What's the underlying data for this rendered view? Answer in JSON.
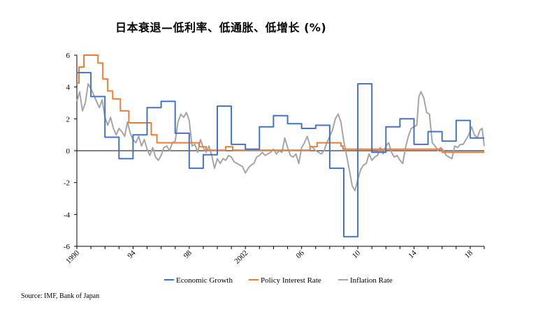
{
  "chart_data": {
    "type": "line",
    "title": "日本衰退—低利率、低通胀、低增长 (%)",
    "source": "Source: IMF, Bank of Japan",
    "ylim": [
      -6,
      6
    ],
    "yticks": [
      "6",
      "4",
      "2",
      "0",
      "-2",
      "-4",
      "-6"
    ],
    "xlim": [
      1990,
      2019
    ],
    "xtick_labels": [
      {
        "label": "1990",
        "x": 1990
      },
      {
        "label": "94",
        "x": 1994
      },
      {
        "label": "98",
        "x": 1998
      },
      {
        "label": "2002",
        "x": 2002
      },
      {
        "label": "06",
        "x": 2006
      },
      {
        "label": "10",
        "x": 2010
      },
      {
        "label": "14",
        "x": 2014
      },
      {
        "label": "18",
        "x": 2018
      }
    ],
    "zero_line": true,
    "grid": false,
    "legend_position": "bottom",
    "series": [
      {
        "name": "Economic Growth",
        "color": "#4472C4",
        "points": [
          [
            1990.0,
            4.9
          ],
          [
            1991.0,
            4.9
          ],
          [
            1991.0,
            3.4
          ],
          [
            1992.0,
            3.4
          ],
          [
            1992.0,
            0.85
          ],
          [
            1993.0,
            0.85
          ],
          [
            1993.0,
            -0.5
          ],
          [
            1994.0,
            -0.5
          ],
          [
            1994.0,
            1.0
          ],
          [
            1995.0,
            1.0
          ],
          [
            1995.0,
            2.7
          ],
          [
            1996.0,
            2.7
          ],
          [
            1996.0,
            3.1
          ],
          [
            1997.0,
            3.1
          ],
          [
            1997.0,
            1.1
          ],
          [
            1998.0,
            1.1
          ],
          [
            1998.0,
            -1.1
          ],
          [
            1999.0,
            -1.1
          ],
          [
            1999.0,
            -0.25
          ],
          [
            2000.0,
            -0.25
          ],
          [
            2000.0,
            2.8
          ],
          [
            2001.0,
            2.8
          ],
          [
            2001.0,
            0.4
          ],
          [
            2002.0,
            0.4
          ],
          [
            2002.0,
            0.1
          ],
          [
            2003.0,
            0.1
          ],
          [
            2003.0,
            1.5
          ],
          [
            2004.0,
            1.5
          ],
          [
            2004.0,
            2.2
          ],
          [
            2005.0,
            2.2
          ],
          [
            2005.0,
            1.7
          ],
          [
            2006.0,
            1.7
          ],
          [
            2006.0,
            1.4
          ],
          [
            2007.0,
            1.4
          ],
          [
            2007.0,
            1.6
          ],
          [
            2008.0,
            1.6
          ],
          [
            2008.0,
            -1.1
          ],
          [
            2009.0,
            -1.1
          ],
          [
            2009.0,
            -5.4
          ],
          [
            2010.0,
            -5.4
          ],
          [
            2010.0,
            4.2
          ],
          [
            2011.0,
            4.2
          ],
          [
            2011.0,
            -0.1
          ],
          [
            2012.0,
            -0.1
          ],
          [
            2012.0,
            1.5
          ],
          [
            2013.0,
            1.5
          ],
          [
            2013.0,
            2.0
          ],
          [
            2014.0,
            2.0
          ],
          [
            2014.0,
            0.4
          ],
          [
            2015.0,
            0.4
          ],
          [
            2015.0,
            1.2
          ],
          [
            2016.0,
            1.2
          ],
          [
            2016.0,
            0.6
          ],
          [
            2017.0,
            0.6
          ],
          [
            2017.0,
            1.9
          ],
          [
            2018.0,
            1.9
          ],
          [
            2018.0,
            0.8
          ],
          [
            2019.0,
            0.8
          ]
        ]
      },
      {
        "name": "Policy Interest Rate",
        "color": "#ED7D31",
        "points": [
          [
            1990.0,
            4.25
          ],
          [
            1990.15,
            4.25
          ],
          [
            1990.15,
            5.25
          ],
          [
            1990.5,
            5.25
          ],
          [
            1990.5,
            6.0
          ],
          [
            1991.5,
            6.0
          ],
          [
            1991.5,
            5.5
          ],
          [
            1991.85,
            5.5
          ],
          [
            1991.85,
            4.5
          ],
          [
            1992.2,
            4.5
          ],
          [
            1992.2,
            3.75
          ],
          [
            1992.55,
            3.75
          ],
          [
            1992.55,
            3.25
          ],
          [
            1993.1,
            3.25
          ],
          [
            1993.1,
            2.5
          ],
          [
            1993.7,
            2.5
          ],
          [
            1993.7,
            1.75
          ],
          [
            1995.3,
            1.75
          ],
          [
            1995.3,
            1.0
          ],
          [
            1995.7,
            1.0
          ],
          [
            1995.7,
            0.5
          ],
          [
            1998.7,
            0.5
          ],
          [
            1998.7,
            0.25
          ],
          [
            1999.2,
            0.25
          ],
          [
            1999.2,
            0.03
          ],
          [
            2000.6,
            0.03
          ],
          [
            2000.6,
            0.25
          ],
          [
            2001.1,
            0.25
          ],
          [
            2001.1,
            0.03
          ],
          [
            2006.6,
            0.03
          ],
          [
            2006.6,
            0.25
          ],
          [
            2007.1,
            0.25
          ],
          [
            2007.1,
            0.5
          ],
          [
            2008.8,
            0.5
          ],
          [
            2008.8,
            0.3
          ],
          [
            2008.95,
            0.3
          ],
          [
            2008.95,
            0.1
          ],
          [
            2016.0,
            0.1
          ],
          [
            2016.0,
            -0.1
          ],
          [
            2019.0,
            -0.1
          ]
        ]
      },
      {
        "name": "Inflation Rate",
        "color": "#A5A5A5",
        "points": [
          [
            1990.0,
            3.1
          ],
          [
            1990.2,
            3.7
          ],
          [
            1990.4,
            2.5
          ],
          [
            1990.6,
            3.0
          ],
          [
            1990.8,
            4.2
          ],
          [
            1991.0,
            3.9
          ],
          [
            1991.2,
            3.5
          ],
          [
            1991.4,
            3.1
          ],
          [
            1991.6,
            2.7
          ],
          [
            1991.8,
            3.2
          ],
          [
            1992.0,
            2.1
          ],
          [
            1992.2,
            1.6
          ],
          [
            1992.4,
            2.1
          ],
          [
            1992.6,
            1.4
          ],
          [
            1992.8,
            1.0
          ],
          [
            1993.0,
            1.4
          ],
          [
            1993.2,
            1.2
          ],
          [
            1993.4,
            0.9
          ],
          [
            1993.6,
            1.8
          ],
          [
            1993.8,
            1.1
          ],
          [
            1994.0,
            0.7
          ],
          [
            1994.2,
            0.5
          ],
          [
            1994.4,
            0.9
          ],
          [
            1994.6,
            0.3
          ],
          [
            1994.8,
            0.7
          ],
          [
            1995.0,
            0.1
          ],
          [
            1995.2,
            -0.3
          ],
          [
            1995.4,
            0.2
          ],
          [
            1995.6,
            -0.4
          ],
          [
            1995.8,
            -0.6
          ],
          [
            1996.0,
            -0.3
          ],
          [
            1996.2,
            0.2
          ],
          [
            1996.4,
            0.3
          ],
          [
            1996.6,
            0.0
          ],
          [
            1996.8,
            0.5
          ],
          [
            1997.0,
            0.6
          ],
          [
            1997.2,
            1.8
          ],
          [
            1997.4,
            2.3
          ],
          [
            1997.6,
            2.1
          ],
          [
            1997.8,
            2.4
          ],
          [
            1998.0,
            1.9
          ],
          [
            1998.2,
            0.3
          ],
          [
            1998.4,
            0.4
          ],
          [
            1998.6,
            -0.1
          ],
          [
            1998.8,
            0.7
          ],
          [
            1999.0,
            0.2
          ],
          [
            1999.2,
            -0.1
          ],
          [
            1999.4,
            0.3
          ],
          [
            1999.6,
            -0.3
          ],
          [
            1999.8,
            -1.1
          ],
          [
            2000.0,
            -0.5
          ],
          [
            2000.2,
            -0.8
          ],
          [
            2000.4,
            -0.5
          ],
          [
            2000.6,
            -0.6
          ],
          [
            2000.8,
            -0.3
          ],
          [
            2001.0,
            -0.4
          ],
          [
            2001.2,
            -0.7
          ],
          [
            2001.4,
            -0.8
          ],
          [
            2001.6,
            -0.9
          ],
          [
            2001.8,
            -1.0
          ],
          [
            2002.0,
            -1.4
          ],
          [
            2002.2,
            -1.1
          ],
          [
            2002.4,
            -0.9
          ],
          [
            2002.6,
            -0.8
          ],
          [
            2002.8,
            -0.4
          ],
          [
            2003.0,
            -0.3
          ],
          [
            2003.2,
            -0.1
          ],
          [
            2003.4,
            -0.3
          ],
          [
            2003.6,
            -0.2
          ],
          [
            2003.8,
            -0.1
          ],
          [
            2004.0,
            0.1
          ],
          [
            2004.2,
            -0.2
          ],
          [
            2004.4,
            0.0
          ],
          [
            2004.6,
            -0.1
          ],
          [
            2004.8,
            0.8
          ],
          [
            2005.0,
            0.2
          ],
          [
            2005.2,
            -0.3
          ],
          [
            2005.4,
            -0.4
          ],
          [
            2005.6,
            -0.2
          ],
          [
            2005.8,
            -0.8
          ],
          [
            2006.0,
            0.2
          ],
          [
            2006.2,
            0.5
          ],
          [
            2006.4,
            0.9
          ],
          [
            2006.6,
            0.3
          ],
          [
            2006.8,
            0.2
          ],
          [
            2007.0,
            0.0
          ],
          [
            2007.2,
            -0.1
          ],
          [
            2007.4,
            -0.2
          ],
          [
            2007.6,
            0.0
          ],
          [
            2007.8,
            0.5
          ],
          [
            2008.0,
            0.9
          ],
          [
            2008.2,
            1.3
          ],
          [
            2008.4,
            2.0
          ],
          [
            2008.6,
            2.3
          ],
          [
            2008.8,
            1.8
          ],
          [
            2009.0,
            0.6
          ],
          [
            2009.2,
            -0.3
          ],
          [
            2009.4,
            -1.2
          ],
          [
            2009.6,
            -2.2
          ],
          [
            2009.8,
            -2.5
          ],
          [
            2010.0,
            -1.8
          ],
          [
            2010.2,
            -1.2
          ],
          [
            2010.4,
            -0.9
          ],
          [
            2010.6,
            -0.8
          ],
          [
            2010.8,
            -0.2
          ],
          [
            2011.0,
            -0.6
          ],
          [
            2011.2,
            -0.4
          ],
          [
            2011.4,
            -0.3
          ],
          [
            2011.6,
            0.2
          ],
          [
            2011.8,
            -0.2
          ],
          [
            2012.0,
            0.3
          ],
          [
            2012.2,
            0.5
          ],
          [
            2012.4,
            -0.1
          ],
          [
            2012.6,
            -0.4
          ],
          [
            2012.8,
            -0.3
          ],
          [
            2013.0,
            -0.6
          ],
          [
            2013.2,
            -0.8
          ],
          [
            2013.4,
            0.2
          ],
          [
            2013.6,
            0.9
          ],
          [
            2013.8,
            1.4
          ],
          [
            2014.0,
            1.5
          ],
          [
            2014.2,
            1.6
          ],
          [
            2014.35,
            3.4
          ],
          [
            2014.5,
            3.7
          ],
          [
            2014.7,
            3.3
          ],
          [
            2014.9,
            2.4
          ],
          [
            2015.1,
            2.3
          ],
          [
            2015.3,
            0.5
          ],
          [
            2015.5,
            0.3
          ],
          [
            2015.7,
            0.0
          ],
          [
            2015.9,
            0.2
          ],
          [
            2016.1,
            0.0
          ],
          [
            2016.3,
            -0.3
          ],
          [
            2016.5,
            -0.4
          ],
          [
            2016.7,
            -0.5
          ],
          [
            2016.9,
            0.3
          ],
          [
            2017.1,
            0.2
          ],
          [
            2017.3,
            0.4
          ],
          [
            2017.5,
            0.4
          ],
          [
            2017.7,
            0.7
          ],
          [
            2017.9,
            1.0
          ],
          [
            2018.1,
            1.5
          ],
          [
            2018.3,
            1.0
          ],
          [
            2018.5,
            0.8
          ],
          [
            2018.7,
            1.3
          ],
          [
            2018.85,
            1.4
          ],
          [
            2019.0,
            0.3
          ]
        ]
      }
    ]
  }
}
